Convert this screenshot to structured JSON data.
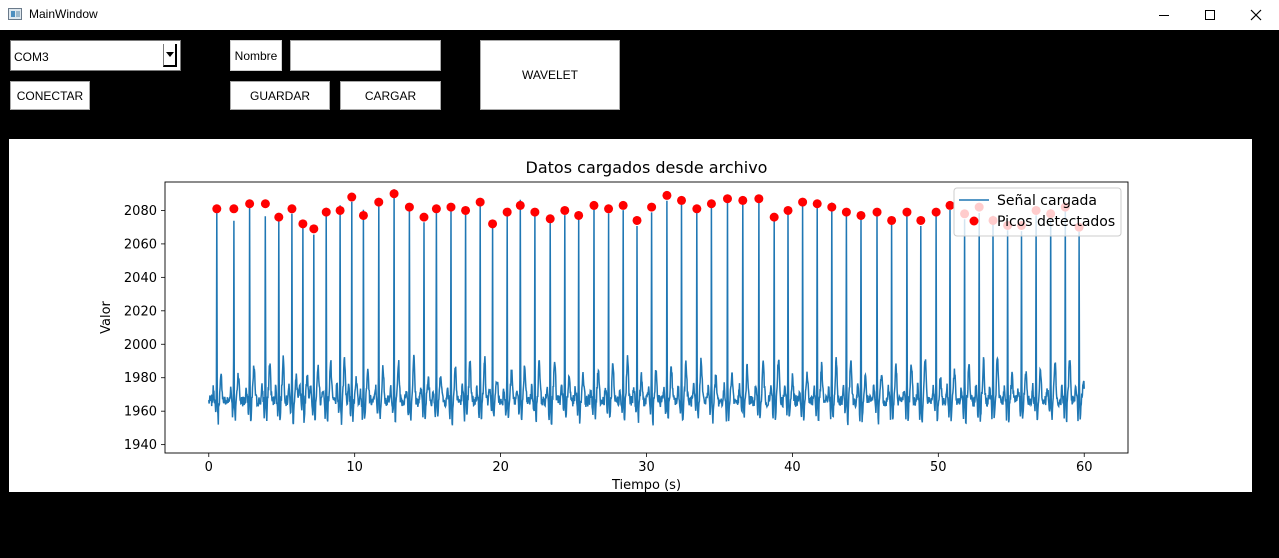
{
  "window": {
    "title": "MainWindow",
    "controls": {
      "minimize_icon": "minimize-icon",
      "maximize_icon": "maximize-icon",
      "close_icon": "close-icon"
    }
  },
  "toolbar": {
    "port_select": {
      "value": "COM3"
    },
    "connect_label": "CONECTAR",
    "name_label": "Nombre",
    "name_input": {
      "value": "",
      "placeholder": ""
    },
    "save_label": "GUARDAR",
    "load_label": "CARGAR",
    "wavelet_label": "WAVELET"
  },
  "chart_data": {
    "type": "line",
    "title": "Datos cargados desde archivo",
    "xlabel": "Tiempo (s)",
    "ylabel": "Valor",
    "xlim": [
      -3,
      63
    ],
    "ylim": [
      1935,
      2097
    ],
    "xticks": [
      0,
      10,
      20,
      30,
      40,
      50,
      60
    ],
    "yticks": [
      1940,
      1960,
      1980,
      2000,
      2020,
      2040,
      2060,
      2080
    ],
    "baseline": 1966,
    "legend": {
      "position": "top-right"
    },
    "colors": {
      "signal": "#1f77b4",
      "peaks": "#ff0000"
    },
    "series": [
      {
        "name": "Señal cargada",
        "kind": "line",
        "x_range": [
          0,
          60
        ],
        "approx_sampling_hz": 40
      },
      {
        "name": "Picos detectados",
        "kind": "scatter",
        "x": [
          0.55,
          1.72,
          2.8,
          3.88,
          4.8,
          5.7,
          6.45,
          7.2,
          8.05,
          9.0,
          9.8,
          10.6,
          11.65,
          12.7,
          13.75,
          14.75,
          15.6,
          16.6,
          17.6,
          18.6,
          19.45,
          20.45,
          21.35,
          22.35,
          23.4,
          24.4,
          25.35,
          26.4,
          27.4,
          28.4,
          29.35,
          30.35,
          31.4,
          32.4,
          33.45,
          34.45,
          35.55,
          36.6,
          37.7,
          38.75,
          39.7,
          40.7,
          41.7,
          42.7,
          43.7,
          44.7,
          45.8,
          46.8,
          47.85,
          48.8,
          49.85,
          50.8,
          51.8,
          52.8,
          53.75,
          54.75,
          55.7,
          56.7,
          57.7,
          58.7,
          59.65
        ],
        "y": [
          2081,
          2081,
          2084,
          2084,
          2076,
          2081,
          2072,
          2069,
          2079,
          2080,
          2088,
          2077,
          2085,
          2090,
          2082,
          2076,
          2081,
          2082,
          2080,
          2085,
          2072,
          2079,
          2083,
          2079,
          2075,
          2080,
          2077,
          2083,
          2081,
          2083,
          2074,
          2082,
          2089,
          2086,
          2081,
          2084,
          2087,
          2086,
          2087,
          2076,
          2080,
          2085,
          2084,
          2082,
          2079,
          2077,
          2079,
          2074,
          2079,
          2074,
          2079,
          2083,
          2078,
          2082,
          2074,
          2071,
          2071,
          2080,
          2078,
          2082,
          2070
        ]
      }
    ]
  }
}
